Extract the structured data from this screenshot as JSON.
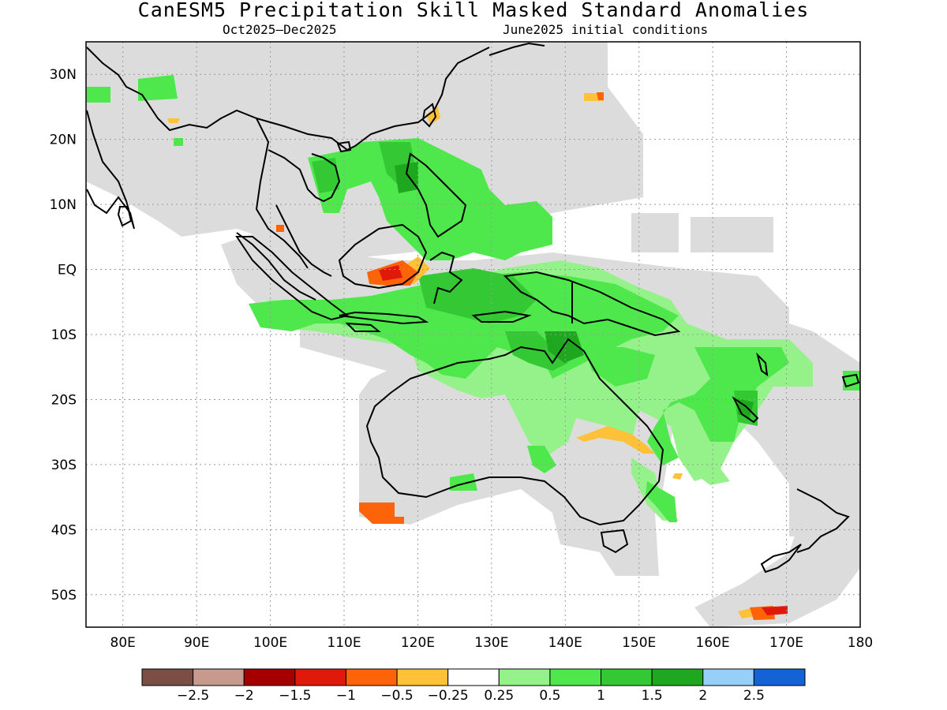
{
  "title": "CanESM5 Precipitation Skill Masked Standard Anomalies",
  "subtitle_left": "Oct2025–Dec2025",
  "subtitle_right": "June2025 initial conditions",
  "map": {
    "lon_range": [
      75,
      180
    ],
    "lat_range": [
      -55,
      35
    ],
    "lon_ticks": [
      "80E",
      "90E",
      "100E",
      "110E",
      "120E",
      "130E",
      "140E",
      "150E",
      "160E",
      "170E",
      "180"
    ],
    "lat_ticks": [
      "30N",
      "20N",
      "10N",
      "EQ",
      "10S",
      "20S",
      "30S",
      "40S",
      "50S"
    ],
    "grid": true
  },
  "legend": {
    "labels": [
      "-2.5",
      "-2",
      "-1.5",
      "-1",
      "-0.5",
      "-0.25",
      "0.25",
      "0.5",
      "1",
      "1.5",
      "2",
      "2.5"
    ],
    "colors": [
      "#7a4e44",
      "#c89a8e",
      "#a50000",
      "#e01a0a",
      "#fd6409",
      "#ffc03a",
      "#ffffff",
      "#95f28a",
      "#4ee84c",
      "#34c834",
      "#1fa81f",
      "#96cff7",
      "#1463d4"
    ]
  },
  "colors": {
    "no_skill_mask": "#dcdcdc",
    "coastline": "#000000"
  }
}
